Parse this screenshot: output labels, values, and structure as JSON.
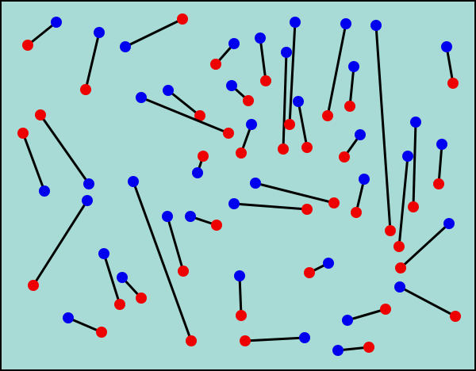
{
  "board": {
    "background": "#a8dbd5",
    "border_color": "#000000",
    "blue_color": "#0000ee",
    "red_color": "#ee0000",
    "line_color": "#000000"
  },
  "segments": [
    {
      "blue": [
        71,
        28
      ],
      "red": [
        35,
        57
      ]
    },
    {
      "blue": [
        125,
        41
      ],
      "red": [
        108,
        113
      ]
    },
    {
      "blue": [
        158,
        59
      ],
      "red": [
        230,
        24
      ]
    },
    {
      "blue": [
        295,
        55
      ],
      "red": [
        272,
        81
      ]
    },
    {
      "blue": [
        328,
        48
      ],
      "red": [
        335,
        102
      ]
    },
    {
      "blue": [
        361,
        66
      ],
      "red": [
        357,
        188
      ]
    },
    {
      "blue": [
        372,
        28
      ],
      "red": [
        365,
        157
      ]
    },
    {
      "blue": [
        436,
        30
      ],
      "red": [
        413,
        146
      ]
    },
    {
      "blue": [
        474,
        32
      ],
      "red": [
        492,
        291
      ]
    },
    {
      "blue": [
        446,
        84
      ],
      "red": [
        441,
        134
      ]
    },
    {
      "blue": [
        563,
        59
      ],
      "red": [
        571,
        105
      ]
    },
    {
      "blue": [
        292,
        108
      ],
      "red": [
        313,
        127
      ]
    },
    {
      "blue": [
        212,
        114
      ],
      "red": [
        252,
        146
      ]
    },
    {
      "blue": [
        178,
        123
      ],
      "red": [
        288,
        168
      ]
    },
    {
      "blue": [
        376,
        128
      ],
      "red": [
        387,
        186
      ]
    },
    {
      "blue": [
        317,
        157
      ],
      "red": [
        304,
        193
      ]
    },
    {
      "blue": [
        454,
        170
      ],
      "red": [
        434,
        198
      ]
    },
    {
      "blue": [
        524,
        154
      ],
      "red": [
        521,
        261
      ]
    },
    {
      "blue": [
        514,
        197
      ],
      "red": [
        503,
        311
      ]
    },
    {
      "blue": [
        557,
        182
      ],
      "red": [
        553,
        232
      ]
    },
    {
      "blue": [
        249,
        218
      ],
      "red": [
        256,
        197
      ]
    },
    {
      "blue": [
        56,
        241
      ],
      "red": [
        29,
        168
      ]
    },
    {
      "blue": [
        112,
        232
      ],
      "red": [
        51,
        145
      ]
    },
    {
      "blue": [
        168,
        229
      ],
      "red": [
        241,
        430
      ]
    },
    {
      "blue": [
        322,
        231
      ],
      "red": [
        421,
        256
      ]
    },
    {
      "blue": [
        295,
        257
      ],
      "red": [
        387,
        264
      ]
    },
    {
      "blue": [
        459,
        226
      ],
      "red": [
        449,
        268
      ]
    },
    {
      "blue": [
        110,
        253
      ],
      "red": [
        42,
        360
      ]
    },
    {
      "blue": [
        211,
        273
      ],
      "red": [
        231,
        342
      ]
    },
    {
      "blue": [
        240,
        273
      ],
      "red": [
        273,
        284
      ]
    },
    {
      "blue": [
        566,
        282
      ],
      "red": [
        505,
        338
      ]
    },
    {
      "blue": [
        131,
        320
      ],
      "red": [
        151,
        384
      ]
    },
    {
      "blue": [
        154,
        350
      ],
      "red": [
        178,
        376
      ]
    },
    {
      "blue": [
        302,
        348
      ],
      "red": [
        304,
        398
      ]
    },
    {
      "blue": [
        414,
        332
      ],
      "red": [
        390,
        344
      ]
    },
    {
      "blue": [
        504,
        362
      ],
      "red": [
        574,
        399
      ]
    },
    {
      "blue": [
        86,
        401
      ],
      "red": [
        128,
        419
      ]
    },
    {
      "blue": [
        438,
        404
      ],
      "red": [
        486,
        390
      ]
    },
    {
      "blue": [
        384,
        426
      ],
      "red": [
        309,
        430
      ]
    },
    {
      "blue": [
        426,
        442
      ],
      "red": [
        465,
        438
      ]
    }
  ]
}
